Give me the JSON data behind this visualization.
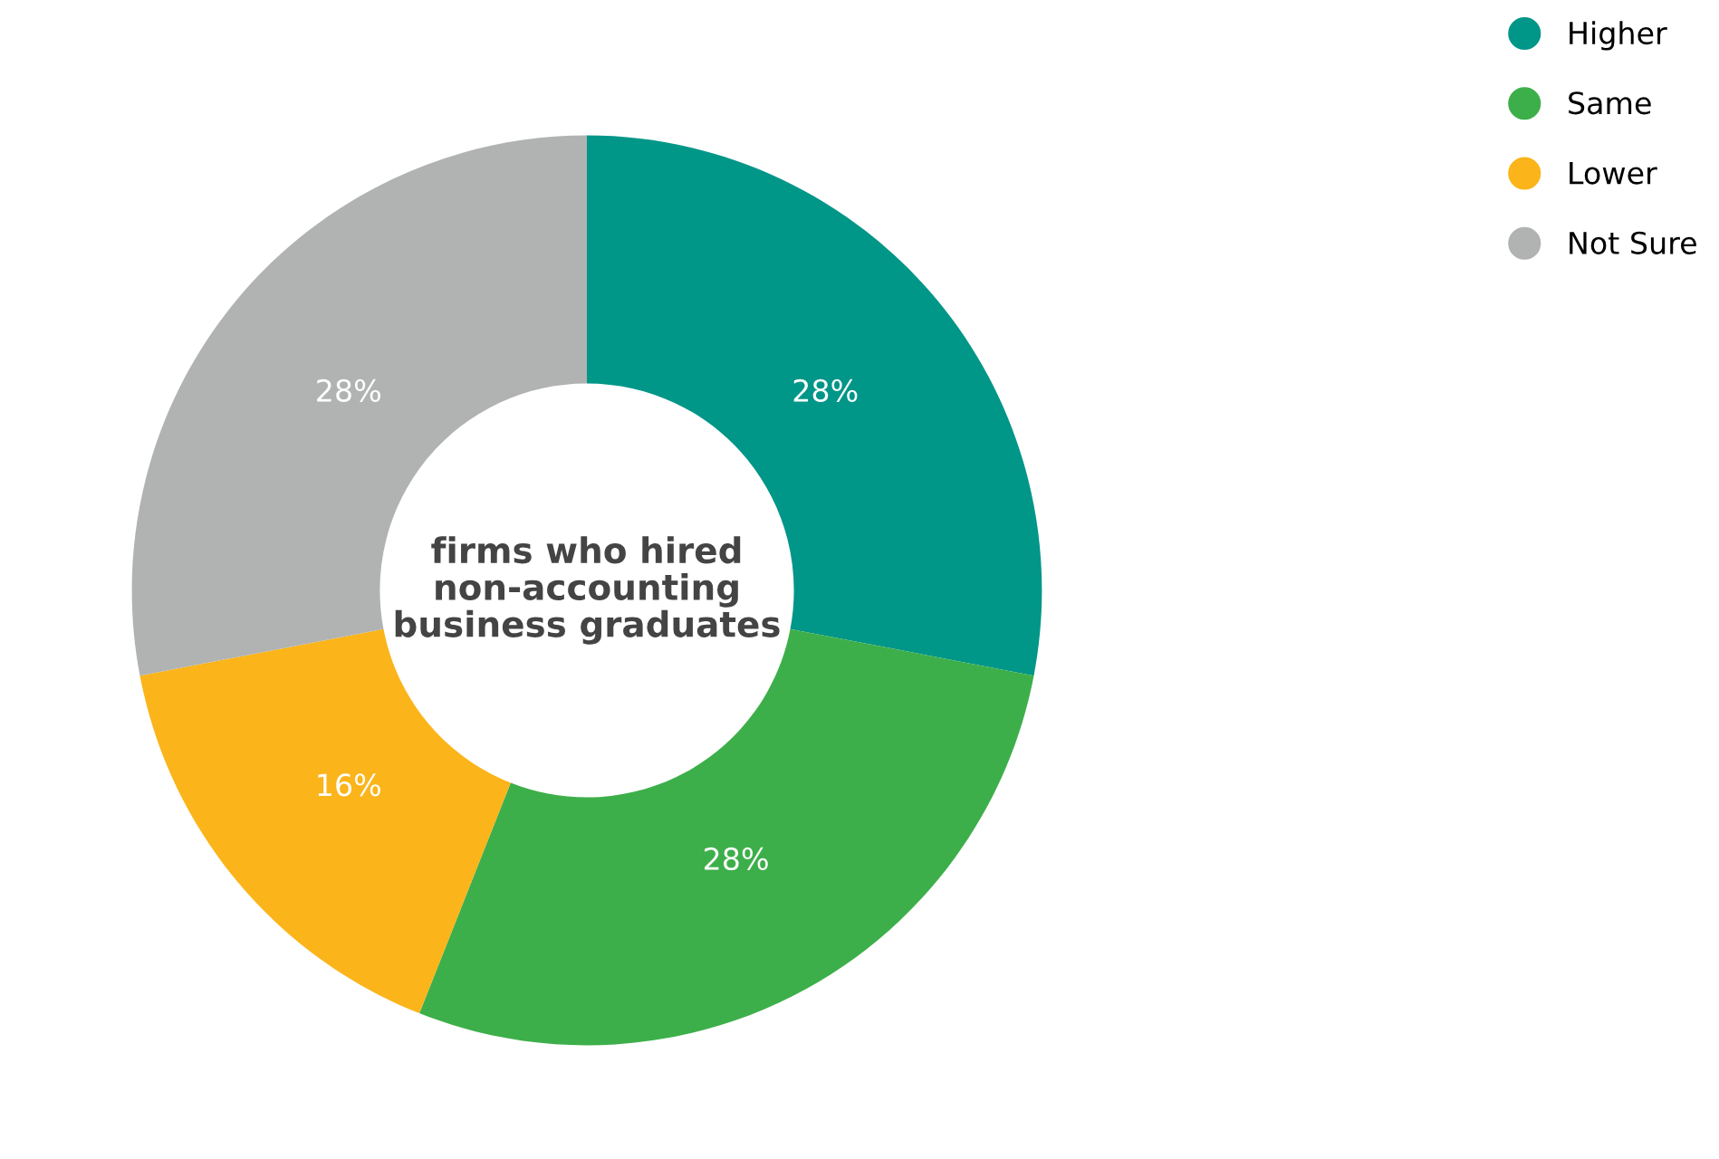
{
  "chart_data": {
    "type": "donut",
    "title": "firms who hired non-accounting business graduates",
    "categories": [
      "Higher",
      "Same",
      "Lower",
      "Not Sure"
    ],
    "values": [
      28,
      28,
      16,
      28
    ],
    "colors": [
      "#009688",
      "#3daf4a",
      "#fbb41a",
      "#b0b3b2"
    ],
    "value_labels": [
      "28%",
      "28%",
      "16%",
      "28%"
    ],
    "legend": "top right"
  }
}
